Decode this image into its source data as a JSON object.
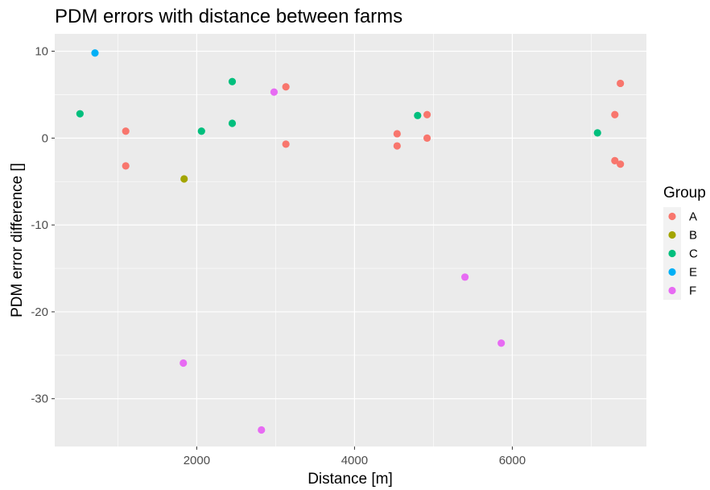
{
  "chart_data": {
    "type": "scatter",
    "title": "PDM errors with distance between farms",
    "xlabel": "Distance [m]",
    "ylabel": "PDM error difference []",
    "xlim": [
      200,
      7700
    ],
    "ylim": [
      -35.5,
      12
    ],
    "x_ticks": [
      2000,
      4000,
      6000
    ],
    "x_minor_ticks": [
      1000,
      3000,
      5000,
      7000
    ],
    "y_ticks": [
      10,
      0,
      -10,
      -20,
      -30
    ],
    "y_minor_ticks": [
      5,
      -5,
      -15,
      -25
    ],
    "grid": true,
    "legend": {
      "title": "Group",
      "position": "right"
    },
    "colors": {
      "A": "#F8766D",
      "B": "#A3A500",
      "C": "#00BF7D",
      "E": "#00B0F6",
      "F": "#E76BF3"
    },
    "series": [
      {
        "name": "A",
        "points": [
          [
            1100,
            0.8
          ],
          [
            1100,
            -3.2
          ],
          [
            3130,
            5.9
          ],
          [
            3130,
            -0.7
          ],
          [
            4540,
            0.5
          ],
          [
            4540,
            -0.9
          ],
          [
            4920,
            2.7
          ],
          [
            4920,
            0.0
          ],
          [
            7300,
            2.7
          ],
          [
            7300,
            -2.6
          ],
          [
            7370,
            6.3
          ],
          [
            7370,
            -3.0
          ]
        ]
      },
      {
        "name": "B",
        "points": [
          [
            1840,
            -4.7
          ]
        ]
      },
      {
        "name": "C",
        "points": [
          [
            520,
            2.8
          ],
          [
            2060,
            0.8
          ],
          [
            2450,
            6.5
          ],
          [
            2450,
            1.7
          ],
          [
            4800,
            2.6
          ],
          [
            7080,
            0.6
          ]
        ]
      },
      {
        "name": "E",
        "points": [
          [
            710,
            9.8
          ]
        ]
      },
      {
        "name": "F",
        "points": [
          [
            1830,
            -25.9
          ],
          [
            2980,
            5.3
          ],
          [
            2820,
            -33.6
          ],
          [
            5400,
            -16.0
          ],
          [
            5860,
            -23.6
          ]
        ]
      }
    ]
  }
}
